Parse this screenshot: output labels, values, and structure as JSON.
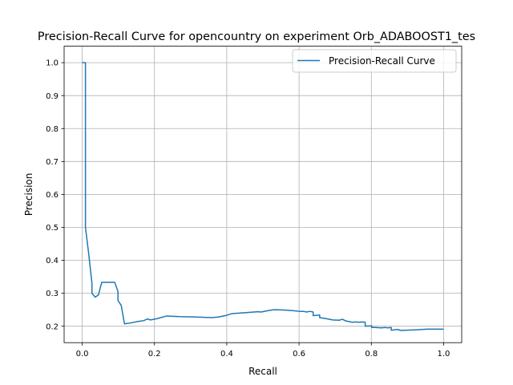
{
  "chart_data": {
    "type": "line",
    "title": "Precision-Recall Curve for opencountry on experiment Orb_ADABOOST1_tes",
    "xlabel": "Recall",
    "ylabel": "Precision",
    "xlim": [
      -0.05,
      1.05
    ],
    "ylim": [
      0.15,
      1.05
    ],
    "xticks": [
      0.0,
      0.2,
      0.4,
      0.6,
      0.8,
      1.0
    ],
    "xtick_labels": [
      "0.0",
      "0.2",
      "0.4",
      "0.6",
      "0.8",
      "1.0"
    ],
    "yticks": [
      0.2,
      0.3,
      0.4,
      0.5,
      0.6,
      0.7,
      0.8,
      0.9,
      1.0
    ],
    "ytick_labels": [
      "0.2",
      "0.3",
      "0.4",
      "0.5",
      "0.6",
      "0.7",
      "0.8",
      "0.9",
      "1.0"
    ],
    "grid": true,
    "legend_position": "top-right",
    "series": [
      {
        "name": "Precision-Recall Curve",
        "color": "#1f77b4",
        "x": [
          0.0,
          0.009,
          0.009,
          0.018,
          0.027,
          0.027,
          0.036,
          0.045,
          0.054,
          0.063,
          0.072,
          0.081,
          0.09,
          0.099,
          0.099,
          0.108,
          0.117,
          0.135,
          0.153,
          0.171,
          0.18,
          0.189,
          0.207,
          0.234,
          0.27,
          0.306,
          0.36,
          0.378,
          0.396,
          0.414,
          0.45,
          0.486,
          0.495,
          0.513,
          0.531,
          0.558,
          0.585,
          0.603,
          0.612,
          0.621,
          0.63,
          0.639,
          0.639,
          0.657,
          0.657,
          0.675,
          0.693,
          0.711,
          0.72,
          0.729,
          0.738,
          0.747,
          0.756,
          0.765,
          0.774,
          0.783,
          0.783,
          0.801,
          0.801,
          0.81,
          0.828,
          0.837,
          0.846,
          0.855,
          0.855,
          0.873,
          0.882,
          0.9,
          0.927,
          0.954,
          0.981,
          1.0
        ],
        "y": [
          1.0,
          1.0,
          0.5,
          0.42,
          0.33,
          0.3,
          0.288,
          0.295,
          0.333,
          0.333,
          0.333,
          0.333,
          0.333,
          0.305,
          0.278,
          0.263,
          0.207,
          0.21,
          0.214,
          0.217,
          0.222,
          0.219,
          0.223,
          0.231,
          0.229,
          0.228,
          0.226,
          0.228,
          0.232,
          0.238,
          0.241,
          0.244,
          0.243,
          0.247,
          0.25,
          0.249,
          0.247,
          0.245,
          0.245,
          0.243,
          0.245,
          0.243,
          0.232,
          0.234,
          0.226,
          0.223,
          0.219,
          0.218,
          0.221,
          0.216,
          0.214,
          0.212,
          0.213,
          0.212,
          0.213,
          0.212,
          0.2,
          0.201,
          0.196,
          0.196,
          0.195,
          0.196,
          0.195,
          0.196,
          0.188,
          0.19,
          0.187,
          0.188,
          0.189,
          0.191,
          0.191,
          0.191
        ]
      }
    ]
  }
}
